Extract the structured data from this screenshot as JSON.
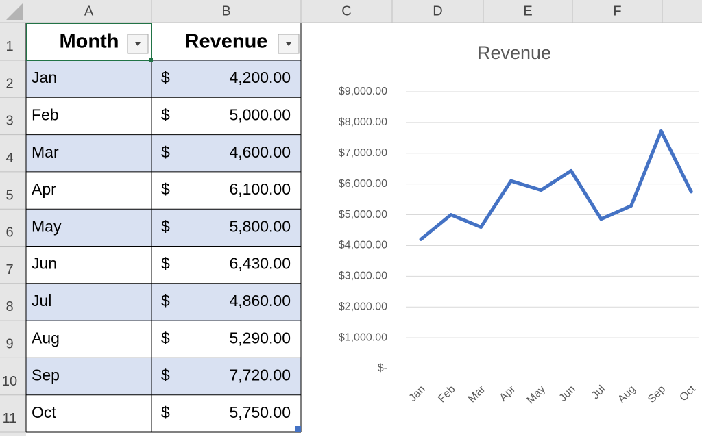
{
  "spreadsheet": {
    "columns": [
      "A",
      "B",
      "C",
      "D",
      "E",
      "F"
    ],
    "rows": [
      1,
      2,
      3,
      4,
      5,
      6,
      7,
      8,
      9,
      10,
      11
    ]
  },
  "table": {
    "header": [
      "Month",
      "Revenue"
    ],
    "rows": [
      [
        "Jan",
        "$",
        "4,200.00"
      ],
      [
        "Feb",
        "$",
        "5,000.00"
      ],
      [
        "Mar",
        "$",
        "4,600.00"
      ],
      [
        "Apr",
        "$",
        "6,100.00"
      ],
      [
        "May",
        "$",
        "5,800.00"
      ],
      [
        "Jun",
        "$",
        "6,430.00"
      ],
      [
        "Jul",
        "$",
        "4,860.00"
      ],
      [
        "Aug",
        "$",
        "5,290.00"
      ],
      [
        "Sep",
        "$",
        "7,720.00"
      ],
      [
        "Oct",
        "$",
        "5,750.00"
      ]
    ]
  },
  "chart_data": {
    "type": "line",
    "title": "Revenue",
    "categories": [
      "Jan",
      "Feb",
      "Mar",
      "Apr",
      "May",
      "Jun",
      "Jul",
      "Aug",
      "Sep",
      "Oct"
    ],
    "values": [
      4200,
      5000,
      4600,
      6100,
      5800,
      6430,
      4860,
      5290,
      7720,
      5750
    ],
    "color": "#4472c4",
    "ylim": [
      0,
      9000
    ],
    "yticks": [
      {
        "value": 0,
        "label": "$-"
      },
      {
        "value": 1000,
        "label": "$1,000.00"
      },
      {
        "value": 2000,
        "label": "$2,000.00"
      },
      {
        "value": 3000,
        "label": "$3,000.00"
      },
      {
        "value": 4000,
        "label": "$4,000.00"
      },
      {
        "value": 5000,
        "label": "$5,000.00"
      },
      {
        "value": 6000,
        "label": "$6,000.00"
      },
      {
        "value": 7000,
        "label": "$7,000.00"
      },
      {
        "value": 8000,
        "label": "$8,000.00"
      },
      {
        "value": 9000,
        "label": "$9,000.00"
      }
    ],
    "grid": true
  }
}
